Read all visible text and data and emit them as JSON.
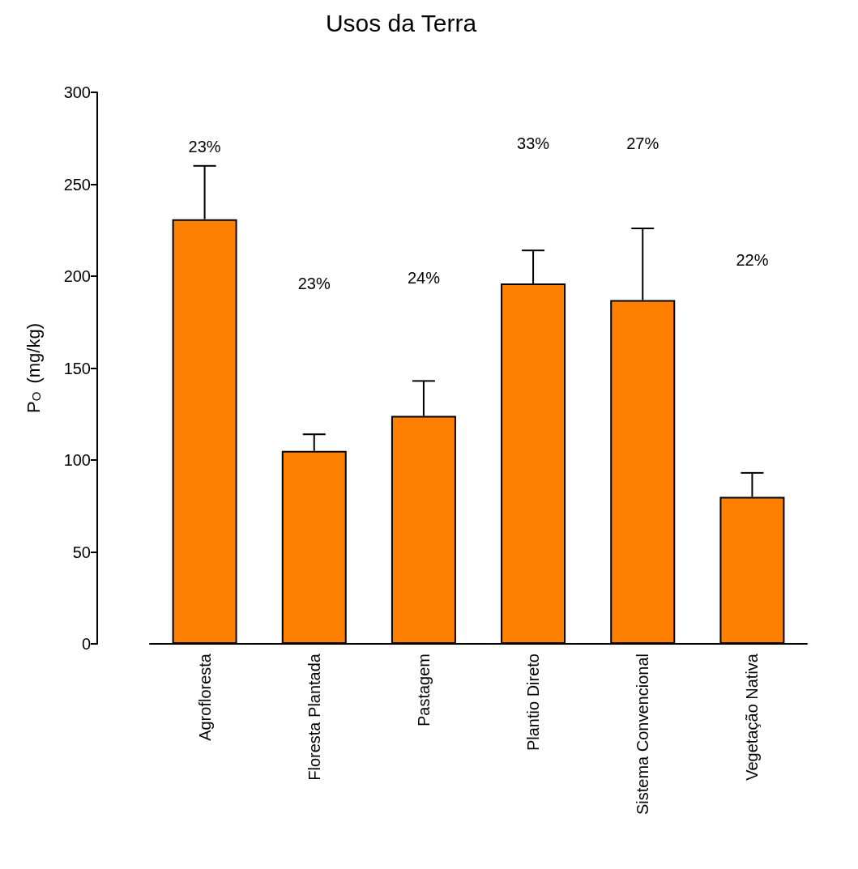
{
  "chart_data": {
    "type": "bar",
    "title": "Usos da Terra",
    "ylabel": "P$_{O}$ (mg/kg)",
    "categories": [
      "Agrofloresta",
      "Floresta Plantada",
      "Pastagem",
      "Plantio Direto",
      "Sistema Convencional",
      "Vegetação Nativa"
    ],
    "values": [
      231,
      105,
      124,
      196,
      187,
      80
    ],
    "errors": [
      [
        231,
        260
      ],
      [
        105,
        114
      ],
      [
        124,
        143
      ],
      [
        196,
        214
      ],
      [
        187,
        226
      ],
      [
        80,
        93
      ]
    ],
    "color": "#ff8000",
    "ylim": [
      0,
      300
    ],
    "yticks": [
      0,
      50,
      100,
      150,
      200,
      250,
      300
    ],
    "grid": false,
    "annotations": [
      "23%",
      "23%",
      "24%",
      "33%",
      "27%",
      "22%"
    ]
  }
}
